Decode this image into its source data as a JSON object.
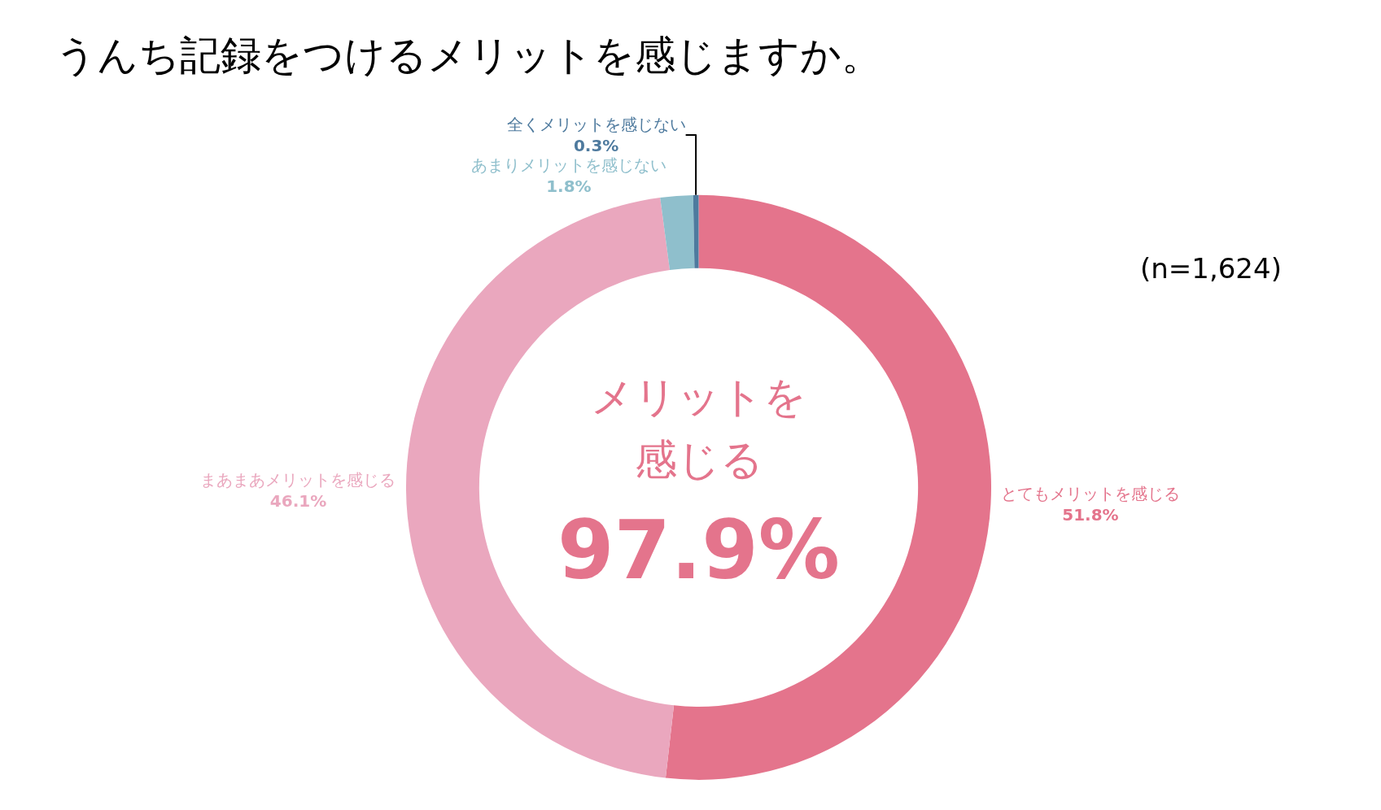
{
  "chart_data": {
    "type": "donut",
    "title": "うんち記録をつけるメリットを感じますか。",
    "categories": [
      "とてもメリットを感じる",
      "まあまあメリットを感じる",
      "あまりメリットを感じない",
      "全くメリットを感じない"
    ],
    "values": [
      51.8,
      46.1,
      1.8,
      0.3
    ],
    "value_labels": [
      "51.8%",
      "46.1%",
      "1.8%",
      "0.3%"
    ],
    "colors": [
      "#e4748c",
      "#eaa7be",
      "#8fbfcc",
      "#4e7a9e"
    ],
    "annotations": [
      "(n=1,624)",
      "メリットを",
      "感じる",
      "97.9%"
    ],
    "legend": false
  }
}
